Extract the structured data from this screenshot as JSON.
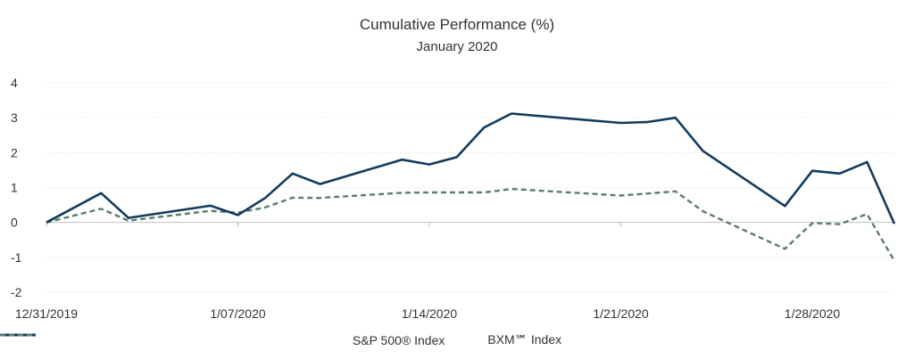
{
  "chart_data": {
    "type": "line",
    "title": "Cumulative Performance (%)",
    "subtitle": "January 2020",
    "xlabel": "",
    "ylabel": "",
    "ylim": [
      -2,
      4
    ],
    "yticks": [
      "4",
      "3",
      "2",
      "1",
      "0",
      "-1",
      "-2"
    ],
    "ytick_values": [
      4,
      3,
      2,
      1,
      0,
      -1,
      -2
    ],
    "xticks": [
      "12/31/2019",
      "1/07/2020",
      "1/14/2020",
      "1/21/2020",
      "1/28/2020"
    ],
    "grid": "horizontal",
    "legend_position": "bottom",
    "x": [
      "12/31/2019",
      "1/02/2020",
      "1/03/2020",
      "1/06/2020",
      "1/07/2020",
      "1/08/2020",
      "1/09/2020",
      "1/10/2020",
      "1/13/2020",
      "1/14/2020",
      "1/15/2020",
      "1/16/2020",
      "1/17/2020",
      "1/21/2020",
      "1/22/2020",
      "1/23/2020",
      "1/24/2020",
      "1/27/2020",
      "1/28/2020",
      "1/29/2020",
      "1/30/2020",
      "1/31/2020"
    ],
    "series": [
      {
        "name": "S&P 500® Index",
        "color": "#133b5c",
        "style": "solid",
        "values": [
          0,
          0.84,
          0.13,
          0.48,
          0.21,
          0.7,
          1.4,
          1.1,
          1.8,
          1.66,
          1.87,
          2.72,
          3.12,
          2.85,
          2.88,
          3.0,
          2.05,
          0.47,
          1.48,
          1.4,
          1.73,
          -0.04
        ]
      },
      {
        "name": "BXM℠ Index",
        "color": "#5b7d6c",
        "style": "dashed",
        "values": [
          0,
          0.39,
          0.05,
          0.33,
          0.28,
          0.43,
          0.71,
          0.7,
          0.85,
          0.86,
          0.86,
          0.86,
          0.96,
          0.77,
          0.83,
          0.89,
          0.32,
          -0.76,
          -0.02,
          -0.05,
          0.24,
          -1.1
        ]
      }
    ]
  }
}
